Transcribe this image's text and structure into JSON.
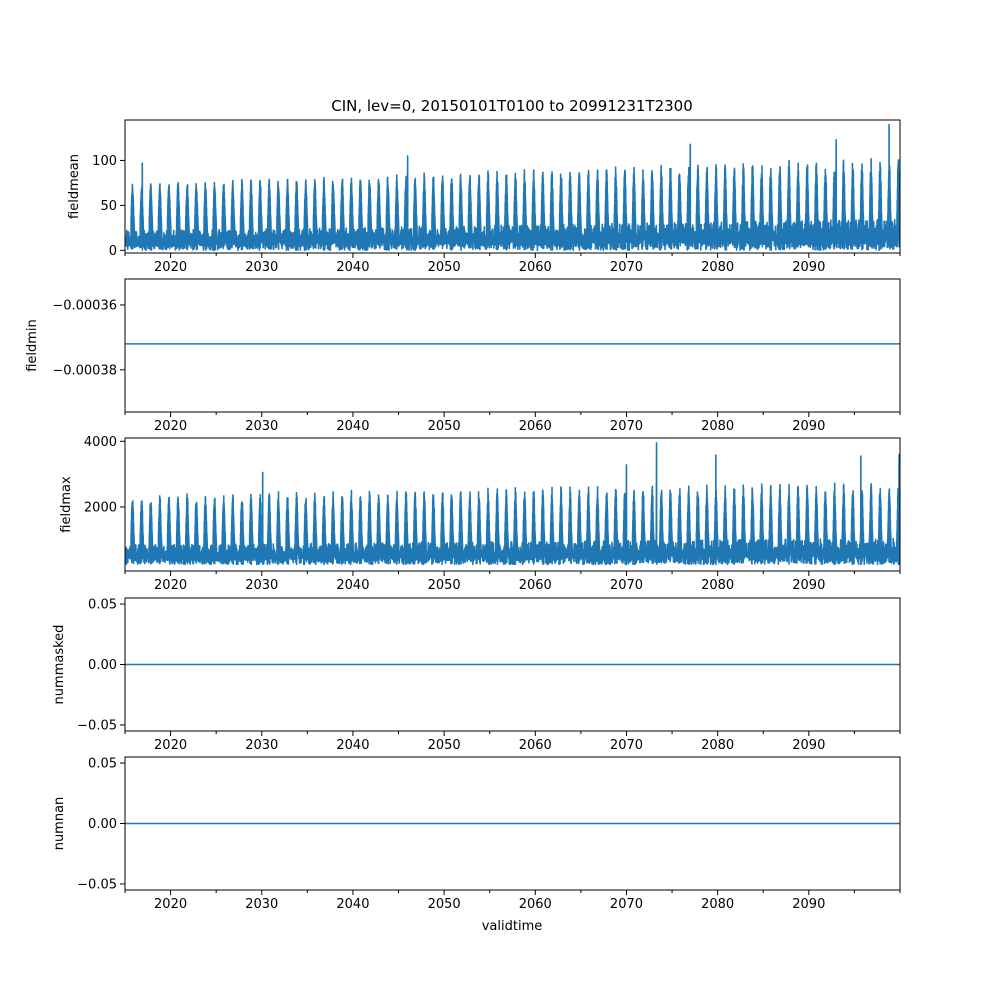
{
  "chart_data": {
    "type": "line",
    "title": "CIN, lev=0, 20150101T0100 to 20991231T2300",
    "xlabel": "validtime",
    "xlim": [
      2015.0,
      2100.0
    ],
    "x_ticks": [
      2020,
      2030,
      2040,
      2050,
      2060,
      2070,
      2080,
      2090
    ],
    "x_tick_labels": [
      "2020",
      "2030",
      "2040",
      "2050",
      "2060",
      "2070",
      "2080",
      "2090"
    ],
    "line_color": "#1f77b4",
    "panels": [
      {
        "name": "fieldmean",
        "ylabel": "fieldmean",
        "ylim": [
          -3,
          145
        ],
        "y_ticks": [
          0,
          50,
          100
        ],
        "y_tick_labels": [
          "0",
          "50",
          "100"
        ],
        "kind": "seasonal",
        "summary": {
          "base_min": 0,
          "base_max_start": 22,
          "base_max_end": 35,
          "peak_min": 48,
          "peak_max_start": 75,
          "peak_max_end": 105,
          "absolute_max": 140
        },
        "spikes": [
          {
            "x": 2016.9,
            "y": 97
          },
          {
            "x": 2046.0,
            "y": 105
          },
          {
            "x": 2077.0,
            "y": 118
          },
          {
            "x": 2093.0,
            "y": 123
          },
          {
            "x": 2098.8,
            "y": 140
          }
        ]
      },
      {
        "name": "fieldmin",
        "ylabel": "fieldmin",
        "ylim": [
          -0.000393,
          -0.000352
        ],
        "y_ticks": [
          -0.00036,
          -0.00038
        ],
        "y_tick_labels": [
          "−0.00036",
          "−0.00038"
        ],
        "kind": "constant",
        "value": -0.000372
      },
      {
        "name": "fieldmax",
        "ylabel": "fieldmax",
        "ylim": [
          50,
          4100
        ],
        "y_ticks": [
          2000,
          4000
        ],
        "y_tick_labels": [
          "2000",
          "4000"
        ],
        "kind": "seasonal",
        "summary": {
          "base_min": 250,
          "base_max_start": 850,
          "base_max_end": 1050,
          "peak_min": 1500,
          "peak_max_start": 2400,
          "peak_max_end": 2800,
          "absolute_max": 3950
        },
        "spikes": [
          {
            "x": 2030.1,
            "y": 3050
          },
          {
            "x": 2070.0,
            "y": 3280
          },
          {
            "x": 2073.3,
            "y": 3950
          },
          {
            "x": 2079.8,
            "y": 3580
          },
          {
            "x": 2095.7,
            "y": 3550
          },
          {
            "x": 2099.9,
            "y": 3600
          }
        ]
      },
      {
        "name": "nummasked",
        "ylabel": "nummasked",
        "ylim": [
          -0.055,
          0.055
        ],
        "y_ticks": [
          0.05,
          0.0,
          -0.05
        ],
        "y_tick_labels": [
          "0.05",
          "0.00",
          "−0.05"
        ],
        "kind": "constant",
        "value": 0.0
      },
      {
        "name": "numnan",
        "ylabel": "numnan",
        "ylim": [
          -0.055,
          0.055
        ],
        "y_ticks": [
          0.05,
          0.0,
          -0.05
        ],
        "y_tick_labels": [
          "0.05",
          "0.00",
          "−0.05"
        ],
        "kind": "constant",
        "value": 0.0
      }
    ]
  }
}
